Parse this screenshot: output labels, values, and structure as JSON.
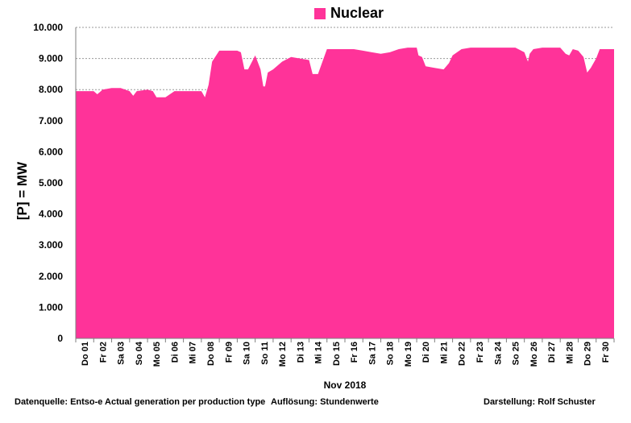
{
  "chart_data": {
    "type": "area",
    "title": "",
    "ylabel": "[P]  = MW",
    "xlabel": "Nov 2018",
    "ylim": [
      0,
      10000
    ],
    "yticks": [
      "0",
      "1.000",
      "2.000",
      "3.000",
      "4.000",
      "5.000",
      "6.000",
      "7.000",
      "8.000",
      "9.000",
      "10.000"
    ],
    "grid": true,
    "legend": {
      "position": "top-center",
      "label": "Nuclear"
    },
    "colors": {
      "series": "#ff3399",
      "grid": "#9a9a9a",
      "axis": "#7f7f7f"
    },
    "x_tick_labels": [
      "Do 01",
      "Fr 02",
      "Sa 03",
      "So 04",
      "Mo 05",
      "Di 06",
      "Mi 07",
      "Do 08",
      "Fr 09",
      "Sa 10",
      "So 11",
      "Mo 12",
      "Di 13",
      "Mi 14",
      "Do 15",
      "Fr 16",
      "Sa 17",
      "So 18",
      "Mo 19",
      "Di 20",
      "Mi 21",
      "Do 22",
      "Fr 23",
      "Sa 24",
      "So 25",
      "Mo 26",
      "Di 27",
      "Mi 28",
      "Do 29",
      "Fr 30"
    ],
    "series": [
      {
        "name": "Nuclear",
        "x_day": [
          0,
          0.5,
          1,
          1.2,
          1.5,
          2,
          2.5,
          3,
          3.2,
          3.4,
          4,
          4.3,
          4.5,
          5,
          5.5,
          6,
          6.5,
          7,
          7.2,
          7.4,
          7.6,
          8,
          8.4,
          9,
          9.2,
          9.4,
          9.6,
          10,
          10.3,
          10.45,
          10.55,
          10.7,
          11,
          11.5,
          12,
          12.5,
          13,
          13.2,
          13.5,
          14,
          14.5,
          15,
          15.5,
          16,
          16.5,
          17,
          17.5,
          18,
          18.5,
          19,
          19.1,
          19.3,
          19.5,
          20,
          20.5,
          20.8,
          21,
          21.5,
          22,
          22.5,
          23,
          23.5,
          24,
          24.5,
          25,
          25.2,
          25.3,
          25.5,
          26,
          26.5,
          27,
          27.3,
          27.5,
          27.7,
          28,
          28.3,
          28.5,
          28.7,
          29,
          29.2,
          29.5,
          29.9,
          30
        ],
        "values": [
          7950,
          7950,
          7950,
          7850,
          8000,
          8050,
          8050,
          7950,
          7800,
          7950,
          8000,
          7950,
          7750,
          7750,
          7950,
          7950,
          7950,
          7950,
          7750,
          8150,
          8900,
          9250,
          9250,
          9250,
          9200,
          8650,
          8650,
          9100,
          8650,
          8100,
          8100,
          8550,
          8650,
          8900,
          9050,
          9000,
          8950,
          8500,
          8500,
          9300,
          9300,
          9300,
          9300,
          9250,
          9200,
          9150,
          9200,
          9300,
          9350,
          9350,
          9100,
          9050,
          8750,
          8700,
          8650,
          8850,
          9100,
          9300,
          9350,
          9350,
          9350,
          9350,
          9350,
          9350,
          9200,
          8900,
          9150,
          9300,
          9350,
          9350,
          9350,
          9150,
          9100,
          9300,
          9250,
          9050,
          8550,
          8700,
          9000,
          9300,
          9300,
          9300,
          9300
        ]
      }
    ]
  },
  "footer": {
    "source": "Datenquelle: Entso-e  Actual generation per production type",
    "resolution": "Auflösung:  Stundenwerte",
    "author": "Darstellung:  Rolf Schuster"
  }
}
